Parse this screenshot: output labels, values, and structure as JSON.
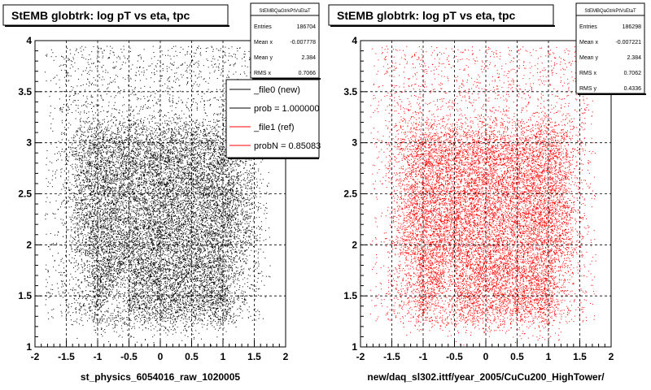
{
  "chart_data": [
    {
      "type": "scatter",
      "title": "StEMB globtrk: log pT vs eta, tpc",
      "xlabel": "st_physics_6054016_raw_1020005",
      "ylabel": "",
      "xlim": [
        -2,
        2
      ],
      "ylim": [
        1,
        4
      ],
      "x_ticks": [
        "-2",
        "-1.5",
        "-1",
        "-0.5",
        "0",
        "0.5",
        "1",
        "1.5",
        "2"
      ],
      "y_ticks": [
        "1",
        "1.5",
        "2",
        "2.5",
        "3",
        "3.5",
        "4"
      ],
      "grid": true,
      "marker_color": "#000000",
      "distribution": {
        "x_core": [
          -1.3,
          1.3
        ],
        "y_core": [
          1.3,
          3.1
        ],
        "x_sigma": 0.15,
        "y_sigma": 0.12
      },
      "stats": {
        "name": "StEMBQaGtrkPtVsEtaT",
        "rows": [
          {
            "label": "Entries",
            "value": "186704"
          },
          {
            "label": "Mean x",
            "value": "-0.007778"
          },
          {
            "label": "Mean y",
            "value": "2.384"
          },
          {
            "label": "RMS x",
            "value": "0.7066"
          }
        ]
      },
      "legend": {
        "position": "top-right",
        "entries": [
          {
            "label": "_file0 (new)",
            "color": "#000000"
          },
          {
            "label": "prob = 1.000000",
            "color": "#000000"
          },
          {
            "label": "_file1 (ref)",
            "color": "#ff0000"
          },
          {
            "label": "probN = 0.85083",
            "color": "#ff0000"
          }
        ]
      }
    },
    {
      "type": "scatter",
      "title": "StEMB globtrk: log pT vs eta, tpc",
      "xlabel": "new/daq_sl302.ittf/year_2005/CuCu200_HighTower/",
      "ylabel": "",
      "xlim": [
        -2,
        2
      ],
      "ylim": [
        1,
        4
      ],
      "x_ticks": [
        "-2",
        "-1.5",
        "-1",
        "-0.5",
        "0",
        "0.5",
        "1",
        "1.5",
        "2"
      ],
      "y_ticks": [
        "1",
        "1.5",
        "2",
        "2.5",
        "3",
        "3.5",
        "4"
      ],
      "grid": true,
      "marker_color": "#ff0000",
      "distribution": {
        "x_core": [
          -1.3,
          1.3
        ],
        "y_core": [
          1.3,
          3.1
        ],
        "x_sigma": 0.15,
        "y_sigma": 0.12
      },
      "stats": {
        "name": "StEMBQaGtrkPtVsEtaT",
        "rows": [
          {
            "label": "Entries",
            "value": "186298"
          },
          {
            "label": "Mean x",
            "value": "-0.007221"
          },
          {
            "label": "Mean y",
            "value": "2.384"
          },
          {
            "label": "RMS x",
            "value": "0.7062"
          },
          {
            "label": "RMS y",
            "value": "0.4336"
          }
        ]
      }
    }
  ]
}
